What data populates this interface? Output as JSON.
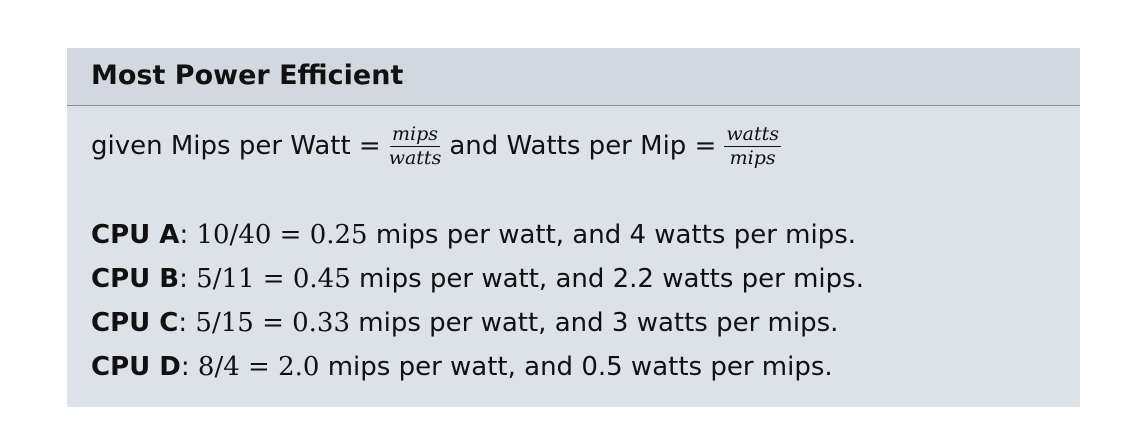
{
  "block": {
    "title": "Most Power Efficient",
    "definition": {
      "prefix": "given Mips per Watt =",
      "frac1_num": "mips",
      "frac1_den": "watts",
      "middle": "and Watts per Mip =",
      "frac2_num": "watts",
      "frac2_den": "mips"
    },
    "cpus": [
      {
        "name": "CPU A",
        "calc": "10/40 = 0.25",
        "text": "mips per watt, and 4 watts per mips."
      },
      {
        "name": "CPU B",
        "calc": "5/11 = 0.45",
        "text": "mips per watt, and 2.2 watts per mips."
      },
      {
        "name": "CPU C",
        "calc": "5/15 = 0.33",
        "text": "mips per watt, and 3 watts per mips."
      },
      {
        "name": "CPU D",
        "calc": "8/4 = 2.0",
        "text": "mips per watt, and 0.5 watts per mips."
      }
    ]
  }
}
